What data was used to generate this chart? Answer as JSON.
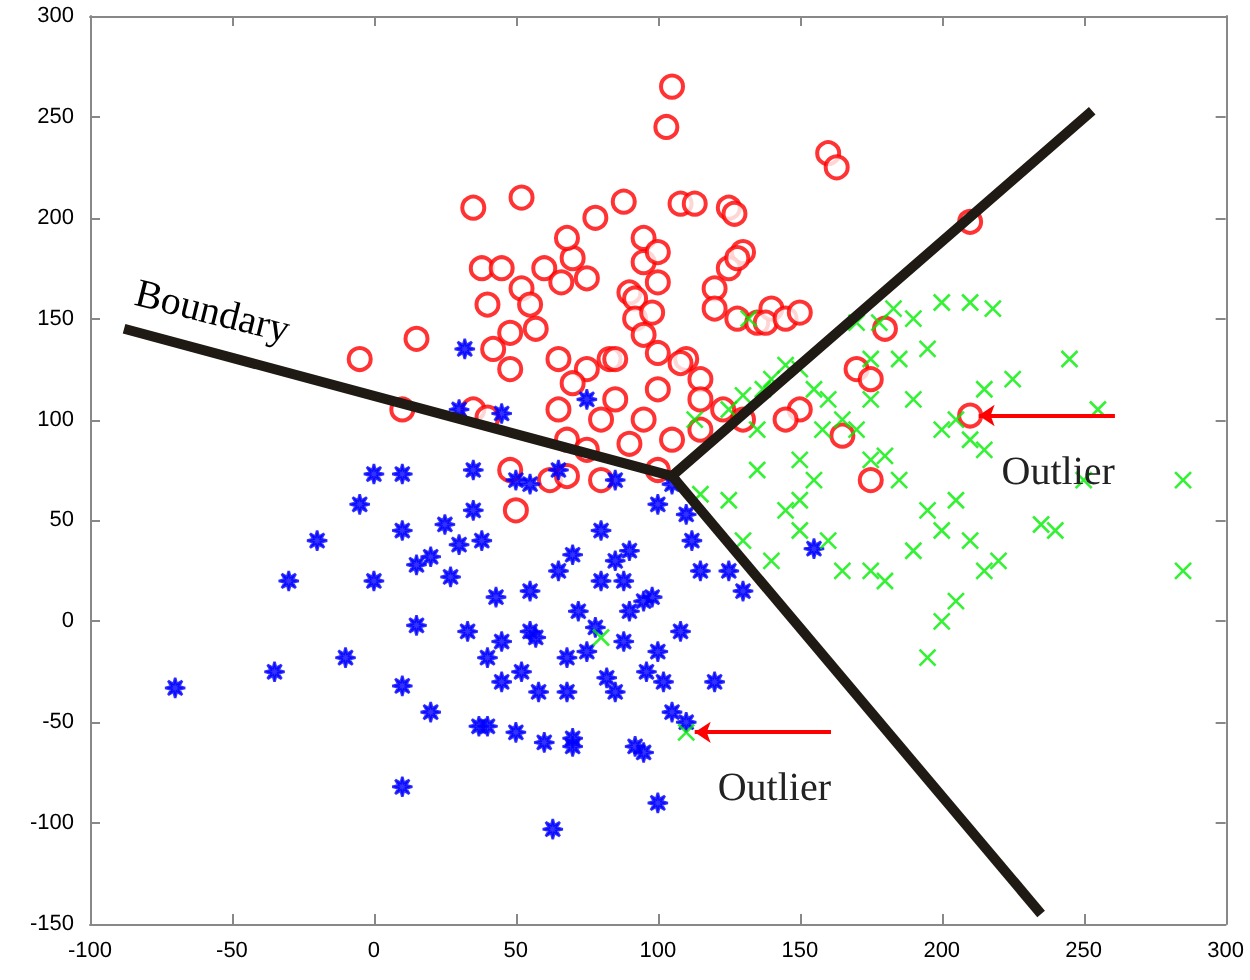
{
  "chart_data": {
    "type": "scatter",
    "xlim": [
      -100,
      300
    ],
    "ylim": [
      -150,
      300
    ],
    "xticks": [
      -100,
      -50,
      0,
      50,
      100,
      150,
      200,
      250,
      300
    ],
    "yticks": [
      -150,
      -100,
      -50,
      0,
      50,
      100,
      150,
      200,
      250,
      300
    ],
    "grid": false,
    "legend": false,
    "series": [
      {
        "marker": "circle",
        "color": "#ff0000",
        "x": [
          -5,
          15,
          35,
          38,
          45,
          40,
          52,
          48,
          52,
          55,
          42,
          48,
          57,
          60,
          66,
          70,
          68,
          78,
          75,
          88,
          95,
          90,
          92,
          95,
          100,
          100,
          92,
          95,
          98,
          108,
          113,
          103,
          105,
          120,
          110,
          115,
          125,
          127,
          130,
          125,
          120,
          128,
          135,
          140,
          138,
          145,
          128,
          150,
          160,
          163,
          180,
          210,
          65,
          75,
          70,
          83,
          85,
          80,
          95,
          100,
          108,
          115,
          123,
          115,
          85,
          68,
          62,
          75,
          105,
          90,
          50,
          48,
          10,
          35,
          40,
          170,
          175,
          165,
          210,
          175,
          150,
          145,
          130,
          100,
          80,
          68,
          65,
          100
        ],
        "values": [
          130,
          140,
          205,
          175,
          175,
          157,
          210,
          125,
          165,
          157,
          135,
          143,
          145,
          175,
          168,
          180,
          190,
          200,
          170,
          208,
          190,
          163,
          160,
          178,
          183,
          168,
          150,
          142,
          153,
          207,
          207,
          245,
          265,
          165,
          130,
          120,
          205,
          202,
          183,
          175,
          155,
          150,
          148,
          155,
          148,
          150,
          180,
          153,
          232,
          225,
          145,
          198,
          130,
          125,
          118,
          130,
          110,
          100,
          100,
          115,
          128,
          110,
          105,
          95,
          130,
          90,
          70,
          85,
          90,
          88,
          55,
          75,
          105,
          105,
          101,
          125,
          120,
          92,
          102,
          70,
          105,
          100,
          100,
          75,
          70,
          72,
          105,
          133
        ]
      },
      {
        "marker": "star",
        "color": "#0000ff",
        "x": [
          -70,
          -35,
          -30,
          -20,
          -10,
          -5,
          0,
          0,
          10,
          10,
          10,
          10,
          15,
          20,
          20,
          25,
          30,
          27,
          30,
          33,
          35,
          35,
          37,
          40,
          40,
          43,
          45,
          45,
          50,
          50,
          52,
          55,
          55,
          55,
          57,
          58,
          60,
          63,
          65,
          65,
          68,
          68,
          70,
          70,
          70,
          72,
          75,
          78,
          80,
          80,
          82,
          85,
          85,
          85,
          88,
          88,
          90,
          90,
          92,
          95,
          96,
          98,
          100,
          100,
          102,
          105,
          105,
          108,
          110,
          110,
          112,
          115,
          120,
          125,
          130,
          155,
          45,
          32,
          75,
          38,
          15,
          95,
          100
        ],
        "values": [
          -33,
          -25,
          20,
          40,
          -18,
          58,
          20,
          73,
          73,
          45,
          -32,
          -82,
          -2,
          32,
          -45,
          48,
          38,
          22,
          105,
          -5,
          75,
          55,
          -52,
          -52,
          -18,
          12,
          -10,
          -30,
          -55,
          70,
          -25,
          -5,
          68,
          15,
          -8,
          -35,
          -60,
          -103,
          75,
          25,
          -35,
          -18,
          -62,
          -58,
          33,
          5,
          -15,
          -3,
          20,
          45,
          -28,
          -35,
          30,
          70,
          -10,
          20,
          35,
          5,
          -62,
          -65,
          -25,
          12,
          -90,
          58,
          -30,
          -45,
          68,
          -5,
          -50,
          53,
          40,
          25,
          -30,
          25,
          15,
          36,
          103,
          135,
          110,
          40,
          28,
          10,
          -15
        ]
      },
      {
        "marker": "cross",
        "color": "#00ee00",
        "x": [
          110,
          80,
          115,
          113,
          125,
          130,
          132,
          135,
          137,
          140,
          145,
          150,
          155,
          158,
          160,
          165,
          170,
          175,
          178,
          183,
          185,
          190,
          190,
          195,
          200,
          210,
          218,
          245,
          225,
          215,
          205,
          210,
          200,
          215,
          205,
          195,
          185,
          180,
          170,
          175,
          155,
          150,
          145,
          150,
          160,
          165,
          175,
          180,
          190,
          200,
          210,
          220,
          215,
          235,
          240,
          205,
          200,
          195,
          250,
          255,
          285,
          285,
          175,
          150,
          135,
          125,
          130,
          140
        ],
        "values": [
          -55,
          -8,
          63,
          100,
          105,
          112,
          150,
          95,
          115,
          120,
          127,
          125,
          115,
          95,
          110,
          100,
          148,
          130,
          148,
          155,
          130,
          150,
          110,
          135,
          158,
          158,
          155,
          130,
          120,
          115,
          100,
          90,
          95,
          85,
          60,
          55,
          70,
          82,
          95,
          80,
          70,
          60,
          55,
          45,
          40,
          25,
          25,
          20,
          35,
          45,
          40,
          30,
          25,
          48,
          45,
          10,
          0,
          -18,
          70,
          105,
          70,
          25,
          110,
          80,
          75,
          60,
          40,
          30
        ]
      },
      {
        "type": "line",
        "name": "Boundary",
        "color": "#201a14",
        "x": [
          -88,
          105,
          253
        ],
        "values": [
          145,
          72,
          253
        ]
      },
      {
        "type": "line",
        "color": "#201a14",
        "x": [
          105,
          235
        ],
        "values": [
          72,
          -145
        ]
      }
    ],
    "annotations": [
      {
        "text": "Outlier",
        "x": 213,
        "y": 102
      },
      {
        "text": "Outlier",
        "x": 113,
        "y": -55
      }
    ]
  }
}
